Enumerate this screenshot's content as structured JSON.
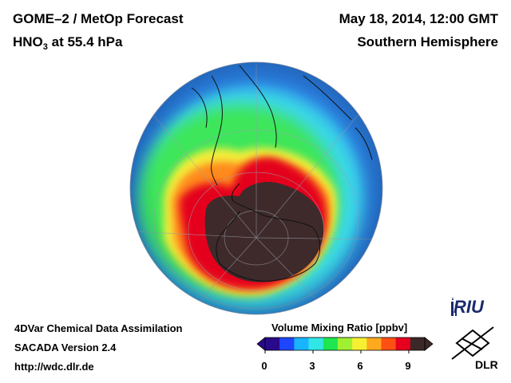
{
  "header": {
    "title": "GOME–2 / MetOp Forecast",
    "species_main": "HNO",
    "species_sub": "3",
    "species_rest": " at 55.4 hPa",
    "date": "May 18, 2014, 12:00 GMT",
    "hemisphere": "Southern Hemisphere"
  },
  "footer": {
    "line1": "4DVar Chemical Data Assimilation",
    "line2": "SACADA Version 2.4",
    "line3": "http://wdc.dlr.de"
  },
  "colorbar": {
    "title": "Volume Mixing Ratio [ppbv]",
    "ticks": [
      "0",
      "3",
      "6",
      "9"
    ],
    "min": 0,
    "max": 10,
    "colors": [
      "#2a0a8c",
      "#1e46ff",
      "#19b4ff",
      "#33e6e6",
      "#1ee650",
      "#a0f032",
      "#f5f032",
      "#ffaa1e",
      "#ff5014",
      "#e6001e",
      "#3c2828"
    ]
  },
  "logos": {
    "riu": "RIU",
    "dlr": "DLR"
  }
}
